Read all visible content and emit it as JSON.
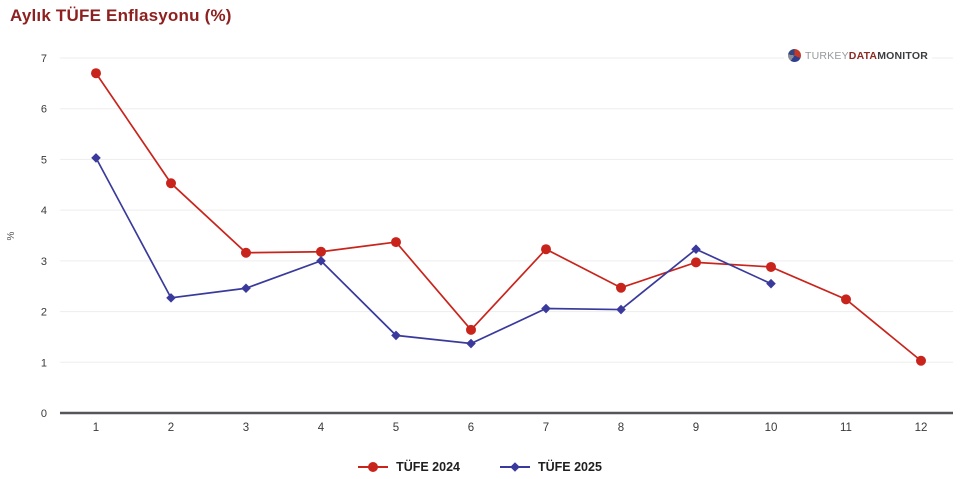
{
  "header": {
    "title": "Aylık TÜFE Enflasyonu (%)"
  },
  "logo": {
    "turkey": "TURKEY",
    "data": "DATA",
    "monitor": "MONITOR"
  },
  "chart_data": {
    "type": "line",
    "title": "Aylık TÜFE Enflasyonu (%)",
    "xlabel": "",
    "ylabel": "%",
    "x_ticks": [
      "1",
      "2",
      "3",
      "4",
      "5",
      "6",
      "7",
      "8",
      "9",
      "10",
      "11",
      "12"
    ],
    "y_ticks": [
      0,
      1,
      2,
      3,
      4,
      5,
      6,
      7
    ],
    "ylim": [
      0,
      7
    ],
    "grid": "horizontal-only",
    "legend_position": "bottom-center",
    "series": [
      {
        "name": "TÜFE 2024",
        "color": "#c9241c",
        "marker": "circle",
        "x": [
          1,
          2,
          3,
          4,
          5,
          6,
          7,
          8,
          9,
          10,
          11,
          12
        ],
        "values": [
          6.7,
          4.53,
          3.16,
          3.18,
          3.37,
          1.64,
          3.23,
          2.47,
          2.97,
          2.88,
          2.24,
          1.03
        ]
      },
      {
        "name": "TÜFE 2025",
        "color": "#3a3a9c",
        "marker": "diamond",
        "x": [
          1,
          2,
          3,
          4,
          5,
          6,
          7,
          8,
          9,
          10
        ],
        "values": [
          5.03,
          2.27,
          2.46,
          3.0,
          1.53,
          1.37,
          2.06,
          2.04,
          3.23,
          2.55
        ]
      }
    ]
  },
  "colors": {
    "title": "#8e2020",
    "axis_line": "#56565a",
    "gridline": "#ededed",
    "tick_label": "#3a3a3a",
    "legend_label": "#1f1f1f"
  }
}
